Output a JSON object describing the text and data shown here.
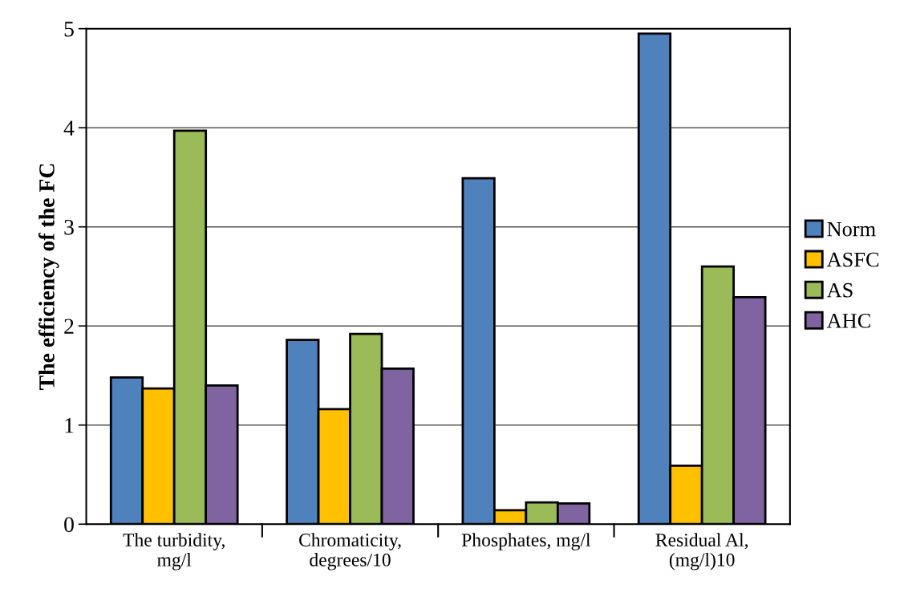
{
  "chart_data": {
    "type": "bar",
    "ylabel": "The efficiency of the FC",
    "categories": [
      "The turbidity,\nmg/l",
      "Chromaticity,\ndegrees/10",
      "Phosphates, mg/l",
      "Residual Al,\n(mg/l)10"
    ],
    "series": [
      {
        "name": "Norm",
        "color": "#4f81bd",
        "values": [
          1.48,
          1.86,
          3.49,
          4.95
        ]
      },
      {
        "name": "ASFC",
        "color": "#ffc000",
        "values": [
          1.37,
          1.16,
          0.14,
          0.59
        ]
      },
      {
        "name": "AS",
        "color": "#9bbb59",
        "values": [
          3.97,
          1.92,
          0.22,
          2.6
        ]
      },
      {
        "name": "AHC",
        "color": "#8064a2",
        "values": [
          1.4,
          1.57,
          0.21,
          2.29
        ]
      }
    ],
    "ylim": [
      0,
      5
    ],
    "yticks": [
      0,
      1,
      2,
      3,
      4,
      5
    ],
    "grid": "y",
    "legend": "right"
  }
}
